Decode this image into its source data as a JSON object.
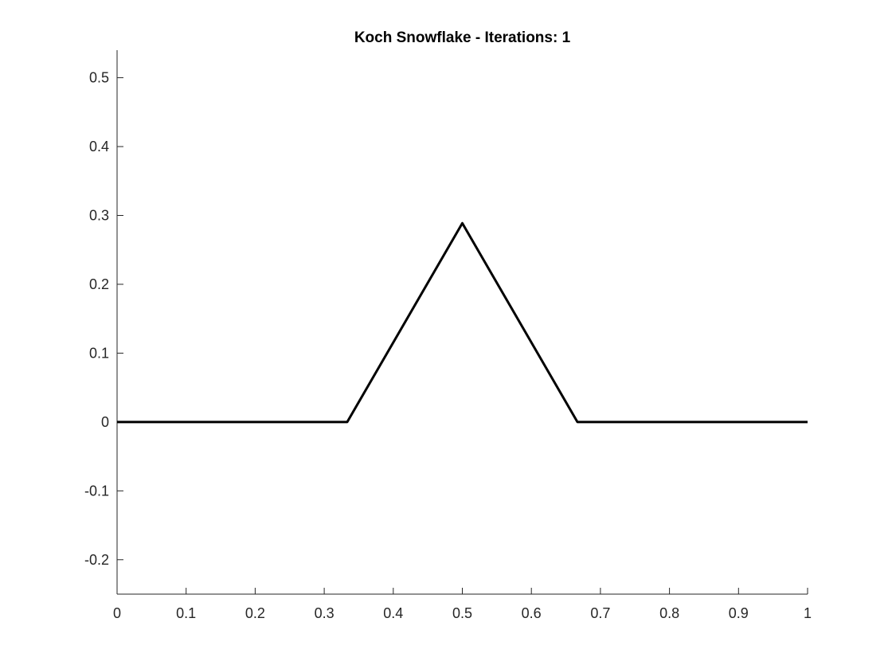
{
  "chart_data": {
    "type": "line",
    "title": "Koch Snowflake - Iterations: 1",
    "xlabel": "",
    "ylabel": "",
    "xlim": [
      0,
      1
    ],
    "ylim": [
      -0.25,
      0.54
    ],
    "grid": false,
    "legend": "none",
    "x_ticks": [
      "0",
      "0.1",
      "0.2",
      "0.3",
      "0.4",
      "0.5",
      "0.6",
      "0.7",
      "0.8",
      "0.9",
      "1"
    ],
    "x_tick_values": [
      0,
      0.1,
      0.2,
      0.3,
      0.4,
      0.5,
      0.6,
      0.7,
      0.8,
      0.9,
      1
    ],
    "y_ticks": [
      "-0.2",
      "-0.1",
      "0",
      "0.1",
      "0.2",
      "0.3",
      "0.4",
      "0.5"
    ],
    "y_tick_values": [
      -0.2,
      -0.1,
      0,
      0.1,
      0.2,
      0.3,
      0.4,
      0.5
    ],
    "series": [
      {
        "color": "#000000",
        "x": [
          0,
          0.3333,
          0.5,
          0.6667,
          1
        ],
        "y": [
          0,
          0,
          0.2887,
          0,
          0
        ]
      }
    ]
  }
}
